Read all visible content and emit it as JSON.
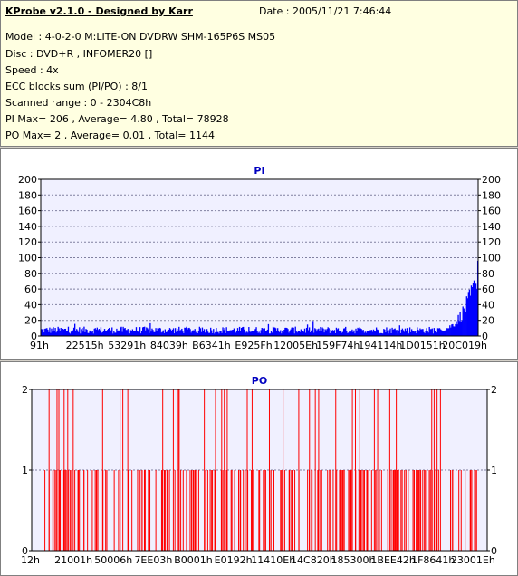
{
  "header": {
    "title": "KProbe v2.1.0 - Designed by Karr",
    "date": "Date : 2005/11/21 7:46:44",
    "lines": [
      "Model : 4-0-2-0 M:LITE-ON DVDRW SHM-165P6S MS05",
      "Disc : DVD+R , INFOMER20 []",
      "Speed : 4x",
      "ECC blocks sum (PI/PO) : 8/1",
      "Scanned range : 0 - 2304C8h",
      "PI Max= 206 , Average= 4.80 , Total= 78928",
      "PO Max= 2 , Average= 0.01 , Total= 1144"
    ]
  },
  "colors": {
    "info_bg": "#ffffe1",
    "plot_bg": "#f0f0ff",
    "pi_bars": "#0000ff",
    "po_bars": "#ff0000",
    "title_text": "#0000c0"
  },
  "chart_data": [
    {
      "type": "bar",
      "title": "PI",
      "ylim": [
        0,
        200
      ],
      "yticks": [
        0,
        20,
        40,
        60,
        80,
        100,
        120,
        140,
        160,
        180,
        200
      ],
      "xtick_labels": [
        "91h",
        "22515h",
        "53291h",
        "84039h",
        "B6341h",
        "E925Fh",
        "12005Eh",
        "159F74h",
        "194114h",
        "1D0151h",
        "20C019h"
      ],
      "y_axis_both_sides": true,
      "grid": "dashed-horizontal",
      "profile": {
        "samples": 470,
        "baseline_range": [
          3,
          12
        ],
        "tail_start_fraction": 0.91,
        "tail_peak": 96,
        "max": 206,
        "average": 4.8
      }
    },
    {
      "type": "bar",
      "title": "PO",
      "ylim": [
        0,
        2
      ],
      "yticks": [
        0,
        1,
        2
      ],
      "xtick_labels": [
        "12h",
        "21001h",
        "50006h",
        "7EE03h",
        "B0001h",
        "E0192h",
        "11410Eh",
        "14C820h",
        "185300h",
        "1BEE42h",
        "1F8641h",
        "23001Eh"
      ],
      "y_axis_both_sides": true,
      "grid": "dashed-horizontal",
      "values_present": [
        1,
        2
      ],
      "max": 2,
      "average": 0.01
    }
  ]
}
